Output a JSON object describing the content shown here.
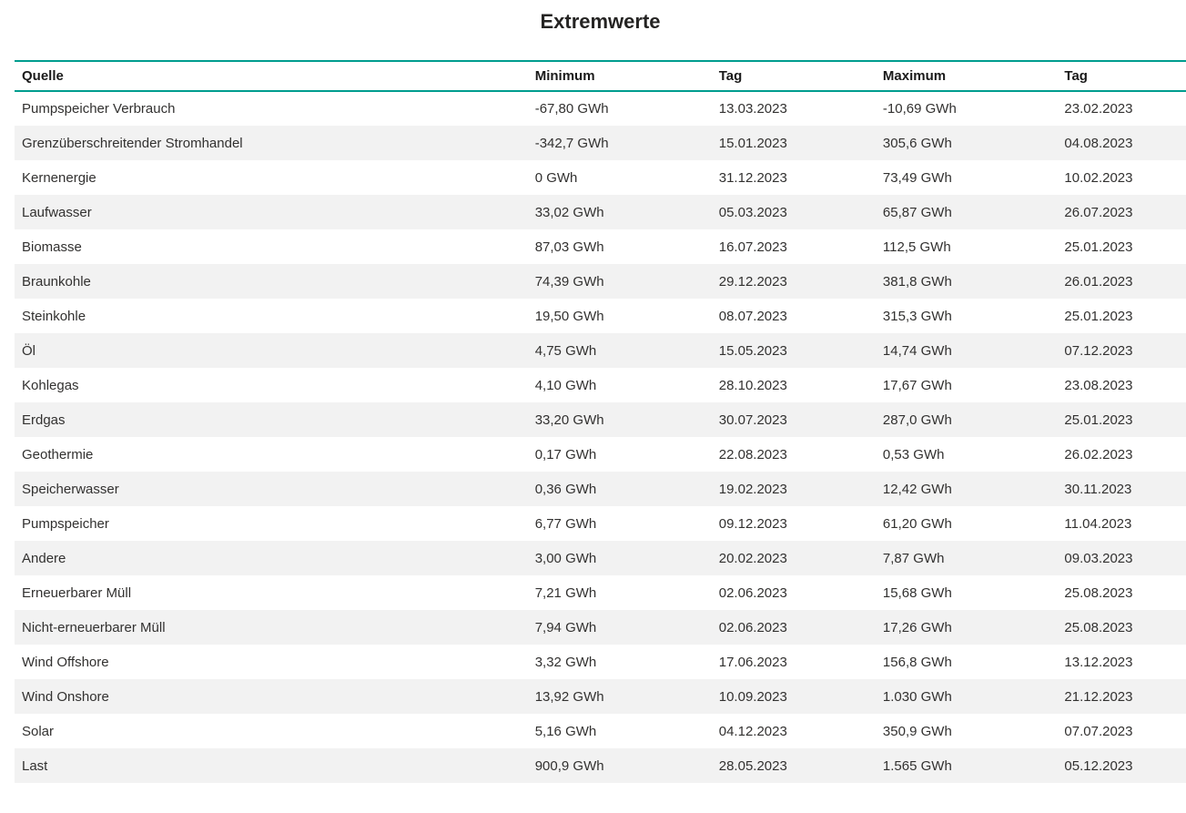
{
  "title": "Extremwerte",
  "colors": {
    "accent": "#009d8f",
    "stripe": "#f2f2f2",
    "title_text": "#252423",
    "header_text": "#1a1a1a",
    "body_text": "#323130",
    "background": "#ffffff"
  },
  "chart_data": {
    "type": "table",
    "title": "Extremwerte",
    "unit": "GWh",
    "columns": [
      "Quelle",
      "Minimum",
      "Tag",
      "Maximum",
      "Tag"
    ],
    "rows": [
      [
        "Pumpspeicher Verbrauch",
        "-67,80 GWh",
        "13.03.2023",
        "-10,69 GWh",
        "23.02.2023"
      ],
      [
        "Grenzüberschreitender Stromhandel",
        "-342,7 GWh",
        "15.01.2023",
        "305,6 GWh",
        "04.08.2023"
      ],
      [
        "Kernenergie",
        "0 GWh",
        "31.12.2023",
        "73,49 GWh",
        "10.02.2023"
      ],
      [
        "Laufwasser",
        "33,02 GWh",
        "05.03.2023",
        "65,87 GWh",
        "26.07.2023"
      ],
      [
        "Biomasse",
        "87,03 GWh",
        "16.07.2023",
        "112,5 GWh",
        "25.01.2023"
      ],
      [
        "Braunkohle",
        "74,39 GWh",
        "29.12.2023",
        "381,8 GWh",
        "26.01.2023"
      ],
      [
        "Steinkohle",
        "19,50 GWh",
        "08.07.2023",
        "315,3 GWh",
        "25.01.2023"
      ],
      [
        "Öl",
        "4,75 GWh",
        "15.05.2023",
        "14,74 GWh",
        "07.12.2023"
      ],
      [
        "Kohlegas",
        "4,10 GWh",
        "28.10.2023",
        "17,67 GWh",
        "23.08.2023"
      ],
      [
        "Erdgas",
        "33,20 GWh",
        "30.07.2023",
        "287,0 GWh",
        "25.01.2023"
      ],
      [
        "Geothermie",
        "0,17 GWh",
        "22.08.2023",
        "0,53 GWh",
        "26.02.2023"
      ],
      [
        "Speicherwasser",
        "0,36 GWh",
        "19.02.2023",
        "12,42 GWh",
        "30.11.2023"
      ],
      [
        "Pumpspeicher",
        "6,77 GWh",
        "09.12.2023",
        "61,20 GWh",
        "11.04.2023"
      ],
      [
        "Andere",
        "3,00 GWh",
        "20.02.2023",
        "7,87 GWh",
        "09.03.2023"
      ],
      [
        "Erneuerbarer Müll",
        "7,21 GWh",
        "02.06.2023",
        "15,68 GWh",
        "25.08.2023"
      ],
      [
        "Nicht-erneuerbarer Müll",
        "7,94 GWh",
        "02.06.2023",
        "17,26 GWh",
        "25.08.2023"
      ],
      [
        "Wind Offshore",
        "3,32 GWh",
        "17.06.2023",
        "156,8 GWh",
        "13.12.2023"
      ],
      [
        "Wind Onshore",
        "13,92 GWh",
        "10.09.2023",
        "1.030 GWh",
        "21.12.2023"
      ],
      [
        "Solar",
        "5,16 GWh",
        "04.12.2023",
        "350,9 GWh",
        "07.07.2023"
      ],
      [
        "Last",
        "900,9 GWh",
        "28.05.2023",
        "1.565 GWh",
        "05.12.2023"
      ]
    ]
  }
}
